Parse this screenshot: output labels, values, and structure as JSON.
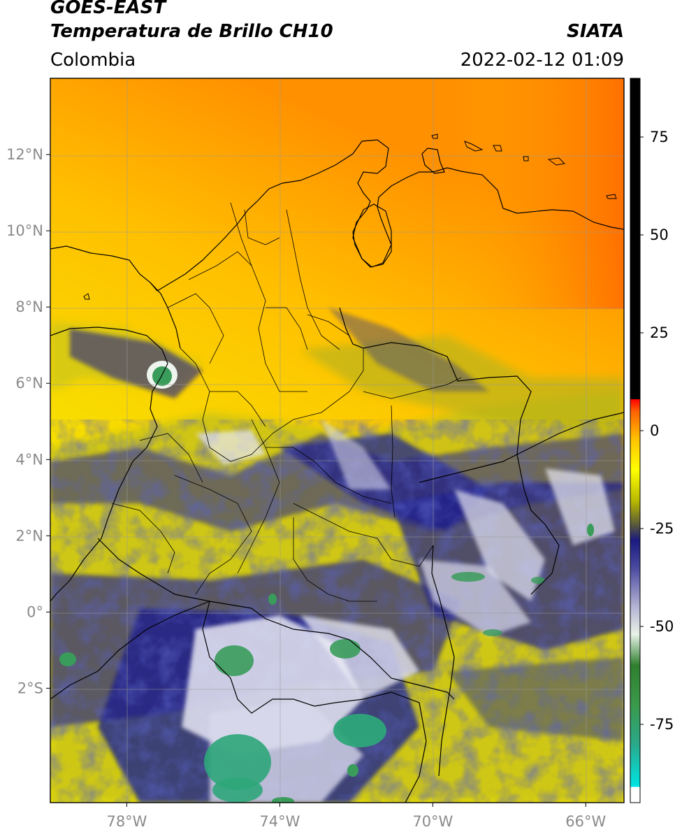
{
  "header": {
    "title_line1": "GOES-EAST",
    "title_line2": "Temperatura de Brillo CH10",
    "region": "Colombia",
    "source": "SIATA",
    "datetime": "2022-02-12 01:09"
  },
  "map": {
    "lon_range": [
      -80.0,
      -65.0
    ],
    "lat_range": [
      -5.0,
      14.0
    ],
    "lon_ticks": [
      {
        "value": -78,
        "label": "78°W"
      },
      {
        "value": -74,
        "label": "74°W"
      },
      {
        "value": -70,
        "label": "70°W"
      },
      {
        "value": -66,
        "label": "66°W"
      }
    ],
    "lat_ticks": [
      {
        "value": 12,
        "label": "12°N"
      },
      {
        "value": 10,
        "label": "10°N"
      },
      {
        "value": 8,
        "label": "8°N"
      },
      {
        "value": 6,
        "label": "6°N"
      },
      {
        "value": 4,
        "label": "4°N"
      },
      {
        "value": 2,
        "label": "2°N"
      },
      {
        "value": 0,
        "label": "0°"
      },
      {
        "value": -2,
        "label": "2°S"
      }
    ],
    "gridlines": true
  },
  "colorbar": {
    "range": [
      -95,
      90
    ],
    "ticks": [
      {
        "value": 75,
        "label": "75"
      },
      {
        "value": 50,
        "label": "50"
      },
      {
        "value": 25,
        "label": "25"
      },
      {
        "value": 0,
        "label": "0"
      },
      {
        "value": -25,
        "label": "-25"
      },
      {
        "value": -50,
        "label": "-50"
      },
      {
        "value": -75,
        "label": "-75"
      }
    ],
    "stops": [
      {
        "value": -95,
        "color": "#ffffff"
      },
      {
        "value": -91,
        "color": "#ffffff"
      },
      {
        "value": -91,
        "color": "#00e5e5"
      },
      {
        "value": -80,
        "color": "#2aa88a"
      },
      {
        "value": -70,
        "color": "#3a9a4a"
      },
      {
        "value": -60,
        "color": "#2e7f2e"
      },
      {
        "value": -52,
        "color": "#e8f2e8"
      },
      {
        "value": -45,
        "color": "#b4b4d4"
      },
      {
        "value": -35,
        "color": "#4a4aa0"
      },
      {
        "value": -28,
        "color": "#1a1a80"
      },
      {
        "value": -24,
        "color": "#5a5a3a"
      },
      {
        "value": -18,
        "color": "#b8b800"
      },
      {
        "value": -10,
        "color": "#ffff00"
      },
      {
        "value": -2,
        "color": "#ffc000"
      },
      {
        "value": 5,
        "color": "#ff6000"
      },
      {
        "value": 8,
        "color": "#ff0000"
      },
      {
        "value": 8,
        "color": "#000000"
      },
      {
        "value": 90,
        "color": "#000000"
      }
    ]
  },
  "colors": {
    "warm_clear": "#ff9800",
    "mid_clear": "#ffd000",
    "low_clear": "#f2ee00",
    "cloud_olive": "#b5b21a",
    "cloud_navy": "#1c1f8c",
    "cloud_white": "#e8e8f4",
    "cloud_green": "#3a9c5a"
  }
}
